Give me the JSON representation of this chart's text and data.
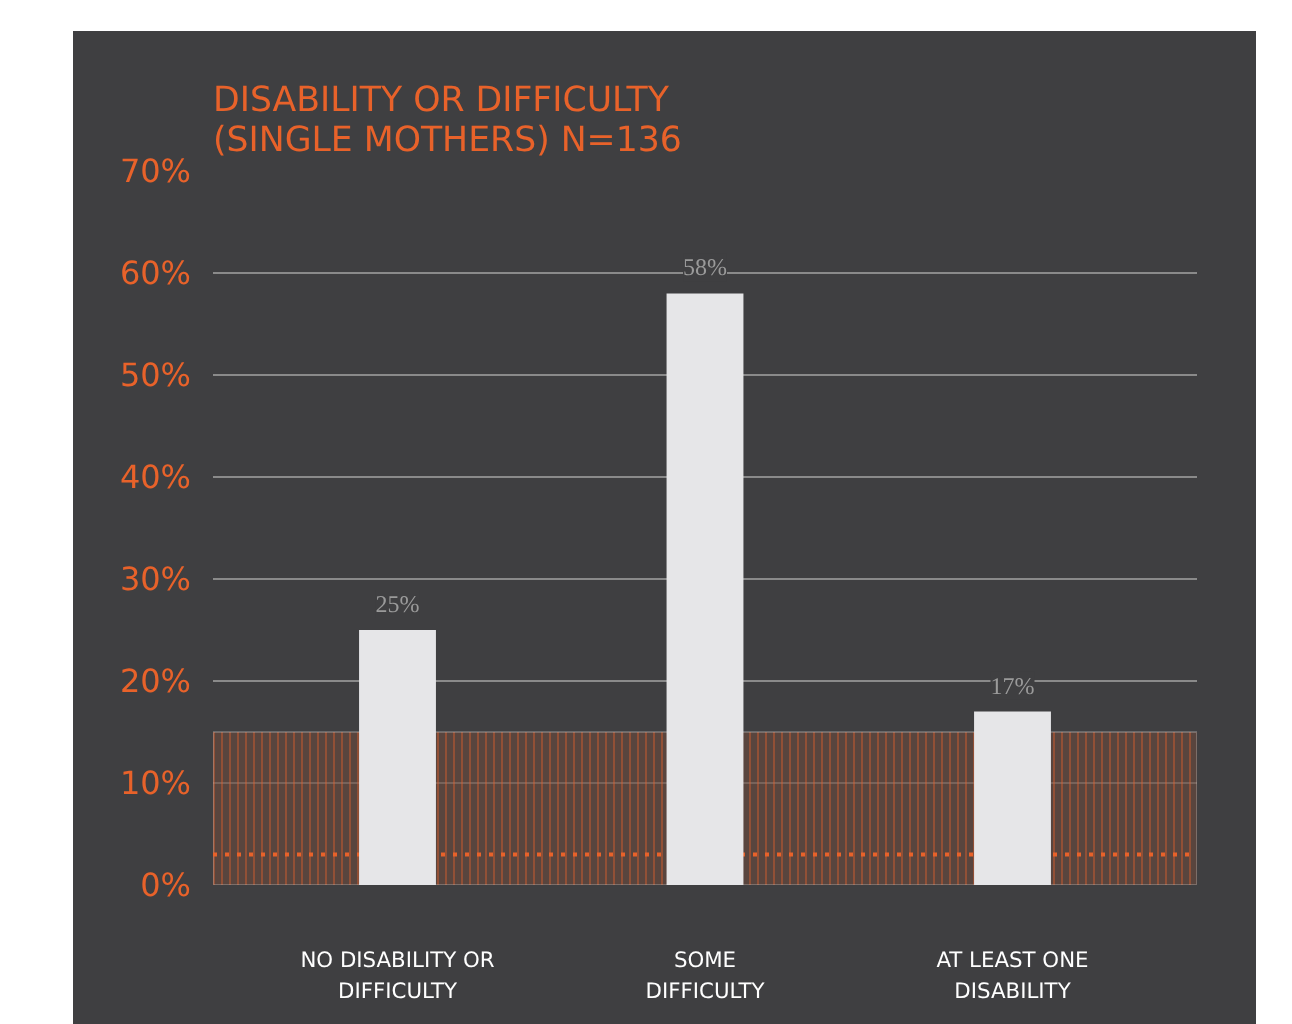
{
  "chart_data": {
    "type": "bar",
    "title": "DISABILITY OR DIFFICULTY\n(SINGLE MOTHERS) N=136",
    "categories": [
      "NO DISABILITY OR\nDIFFICULTY",
      "SOME\nDIFFICULTY",
      "AT LEAST ONE\nDISABILITY"
    ],
    "values": [
      25,
      58,
      17
    ],
    "value_labels": [
      "25%",
      "58%",
      "17%"
    ],
    "color": "#e6e6e8",
    "ylim": [
      0,
      70
    ],
    "yticks": [
      {
        "value": 0,
        "label": "0%"
      },
      {
        "value": 10,
        "label": "10%"
      },
      {
        "value": 20,
        "label": "20%"
      },
      {
        "value": 30,
        "label": "30%"
      },
      {
        "value": 40,
        "label": "40%"
      },
      {
        "value": 50,
        "label": "50%"
      },
      {
        "value": 60,
        "label": "60%"
      },
      {
        "value": 70,
        "label": "70%"
      }
    ],
    "grid": "y",
    "bands": [
      {
        "axis": "y",
        "from": 0,
        "to": 15,
        "color": "#6a4a3c"
      }
    ],
    "ref_lines": [
      {
        "axis": "y",
        "value": 3,
        "color": "#e8622a",
        "line_style": "dotted"
      }
    ]
  }
}
